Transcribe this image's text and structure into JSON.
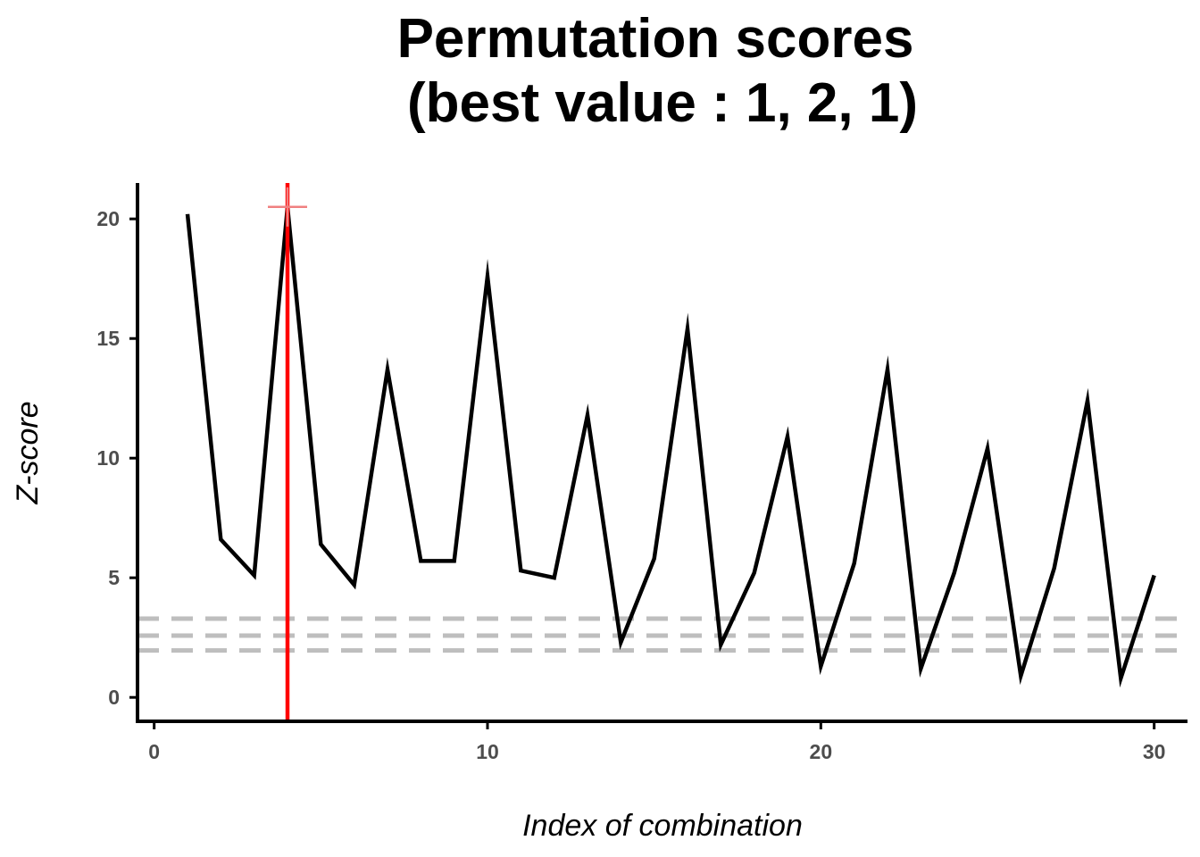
{
  "chart_data": {
    "type": "line",
    "title_lines": [
      "Permutation scores",
      "(best value : 1, 2, 1)"
    ],
    "xlabel": "Index of combination",
    "ylabel": "Z-score",
    "xlim": [
      -0.5,
      31
    ],
    "ylim": [
      -1,
      21.5
    ],
    "x_ticks": [
      0,
      10,
      20,
      30
    ],
    "y_ticks": [
      0,
      5,
      10,
      15,
      20
    ],
    "grid": false,
    "series": [
      {
        "x": [
          1,
          2,
          3,
          4,
          5,
          6,
          7,
          8,
          9,
          10,
          11,
          12,
          13,
          14,
          15,
          16,
          17,
          18,
          19,
          20,
          21,
          22,
          23,
          24,
          25,
          26,
          27,
          28,
          29,
          30
        ],
        "values": [
          20.2,
          6.6,
          5.1,
          20.5,
          6.4,
          4.7,
          13.7,
          5.7,
          5.7,
          17.6,
          5.3,
          5.0,
          11.8,
          2.3,
          5.8,
          15.4,
          2.2,
          5.2,
          10.9,
          1.3,
          5.6,
          13.7,
          1.2,
          5.2,
          10.4,
          0.9,
          5.4,
          12.4,
          0.8,
          5.1
        ],
        "color": "#000000"
      }
    ],
    "reference_lines": [
      {
        "y": 1.96,
        "color": "#bebebe",
        "style": "dashed"
      },
      {
        "y": 2.58,
        "color": "#bebebe",
        "style": "dashed"
      },
      {
        "y": 3.29,
        "color": "#bebebe",
        "style": "dashed"
      }
    ],
    "best_line": {
      "x": 4,
      "color": "#ff0000"
    },
    "best_marker": {
      "x": 4,
      "y": 20.5,
      "color": "#f08080"
    },
    "colors": {
      "axis": "#000000",
      "tick_label": "#4d4d4d"
    }
  }
}
